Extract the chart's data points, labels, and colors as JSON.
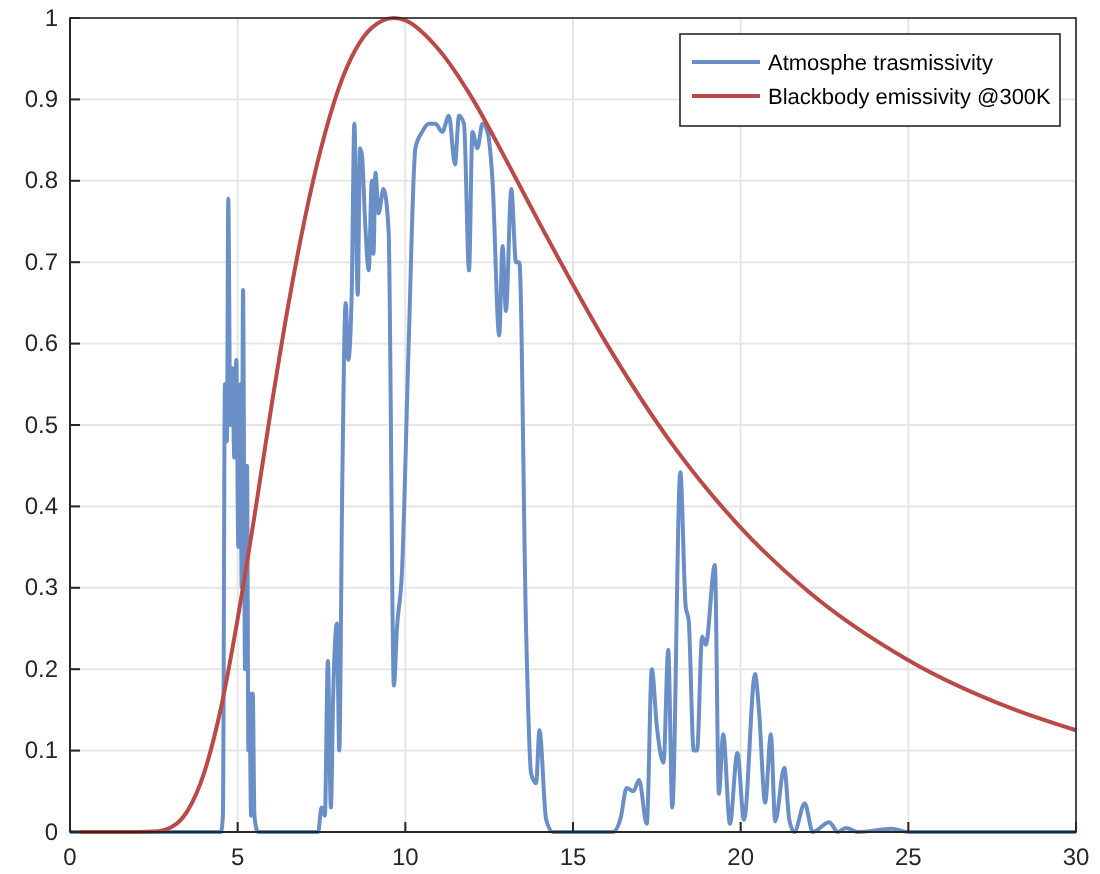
{
  "chart_data": {
    "type": "line",
    "xlim": [
      0,
      30
    ],
    "xticks": [
      0,
      5,
      10,
      15,
      20,
      25,
      30
    ],
    "ylim": [
      0,
      1
    ],
    "yticks": [
      0,
      0.1,
      0.2,
      0.3,
      0.4,
      0.5,
      0.6,
      0.7,
      0.8,
      0.9,
      1
    ],
    "grid": true,
    "legend": "top right",
    "marker": "none",
    "line_style": "solid",
    "series": [
      {
        "name": "Atmosphe trasmissivity",
        "color": "#6a8fc7",
        "x": [
          0,
          4.5,
          4.56,
          4.62,
          4.68,
          4.72,
          4.78,
          4.84,
          4.9,
          4.96,
          5.02,
          5.08,
          5.12,
          5.16,
          5.22,
          5.28,
          5.32,
          5.35,
          5.4,
          5.45,
          5.5,
          5.6,
          7.4,
          7.5,
          7.6,
          7.69,
          7.78,
          7.85,
          7.96,
          8.03,
          8.12,
          8.22,
          8.3,
          8.4,
          8.48,
          8.58,
          8.65,
          8.71,
          8.8,
          8.91,
          9.0,
          9.05,
          9.11,
          9.2,
          9.35,
          9.5,
          9.66,
          9.75,
          9.9,
          10.1,
          10.3,
          10.5,
          10.7,
          10.9,
          11.1,
          11.3,
          11.48,
          11.6,
          11.75,
          11.9,
          12.0,
          12.15,
          12.3,
          12.45,
          12.6,
          12.8,
          12.9,
          13.0,
          13.16,
          13.3,
          13.4,
          13.6,
          13.75,
          13.9,
          14.0,
          14.2,
          14.4,
          16.2,
          16.42,
          16.6,
          16.8,
          16.97,
          17.2,
          17.35,
          17.5,
          17.7,
          17.84,
          17.96,
          18.2,
          18.36,
          18.45,
          18.6,
          18.7,
          18.85,
          18.96,
          19.23,
          19.35,
          19.48,
          19.68,
          19.9,
          20.1,
          20.43,
          20.55,
          20.73,
          20.9,
          21.03,
          21.3,
          21.45,
          21.6,
          21.91,
          22.15,
          22.64,
          22.9,
          23.14,
          23.5,
          24.5,
          25,
          30
        ],
        "values": [
          0,
          0,
          0.02,
          0.55,
          0.48,
          0.778,
          0.5,
          0.57,
          0.46,
          0.58,
          0.35,
          0.55,
          0.3,
          0.666,
          0.2,
          0.45,
          0.1,
          0.17,
          0.02,
          0.17,
          0.02,
          0,
          0,
          0.03,
          0.02,
          0.21,
          0.03,
          0.17,
          0.256,
          0.1,
          0.43,
          0.65,
          0.58,
          0.66,
          0.87,
          0.66,
          0.84,
          0.83,
          0.75,
          0.69,
          0.8,
          0.71,
          0.81,
          0.76,
          0.79,
          0.74,
          0.18,
          0.25,
          0.32,
          0.6,
          0.84,
          0.86,
          0.87,
          0.87,
          0.86,
          0.88,
          0.82,
          0.88,
          0.87,
          0.69,
          0.86,
          0.84,
          0.87,
          0.86,
          0.8,
          0.61,
          0.72,
          0.64,
          0.79,
          0.7,
          0.7,
          0.25,
          0.072,
          0.06,
          0.125,
          0.015,
          0,
          0,
          0.017,
          0.054,
          0.05,
          0.064,
          0.01,
          0.2,
          0.13,
          0.085,
          0.224,
          0.03,
          0.442,
          0.277,
          0.26,
          0.1,
          0.1,
          0.24,
          0.23,
          0.328,
          0.047,
          0.12,
          0.01,
          0.097,
          0.015,
          0.194,
          0.147,
          0.036,
          0.12,
          0.013,
          0.079,
          0.015,
          0,
          0.035,
          0,
          0.012,
          0,
          0.005,
          0,
          0.004,
          0,
          0
        ]
      },
      {
        "name": "Blackbody emissivity @300K",
        "color": "#b94a48",
        "x": [
          0.3,
          1,
          2,
          2.5,
          3,
          3.5,
          4,
          4.5,
          5,
          5.5,
          6,
          6.5,
          7,
          7.5,
          8,
          8.5,
          9,
          9.66,
          10,
          11,
          12,
          13,
          14,
          16,
          18,
          20,
          22,
          25,
          28,
          30
        ],
        "values": [
          0,
          0,
          0,
          0.0006,
          0.0056,
          0.0257,
          0.0727,
          0.152,
          0.262,
          0.388,
          0.521,
          0.645,
          0.753,
          0.842,
          0.912,
          0.96,
          0.988,
          1,
          0.997,
          0.961,
          0.901,
          0.826,
          0.748,
          0.6,
          0.474,
          0.374,
          0.296,
          0.211,
          0.153,
          0.125
        ]
      }
    ]
  }
}
